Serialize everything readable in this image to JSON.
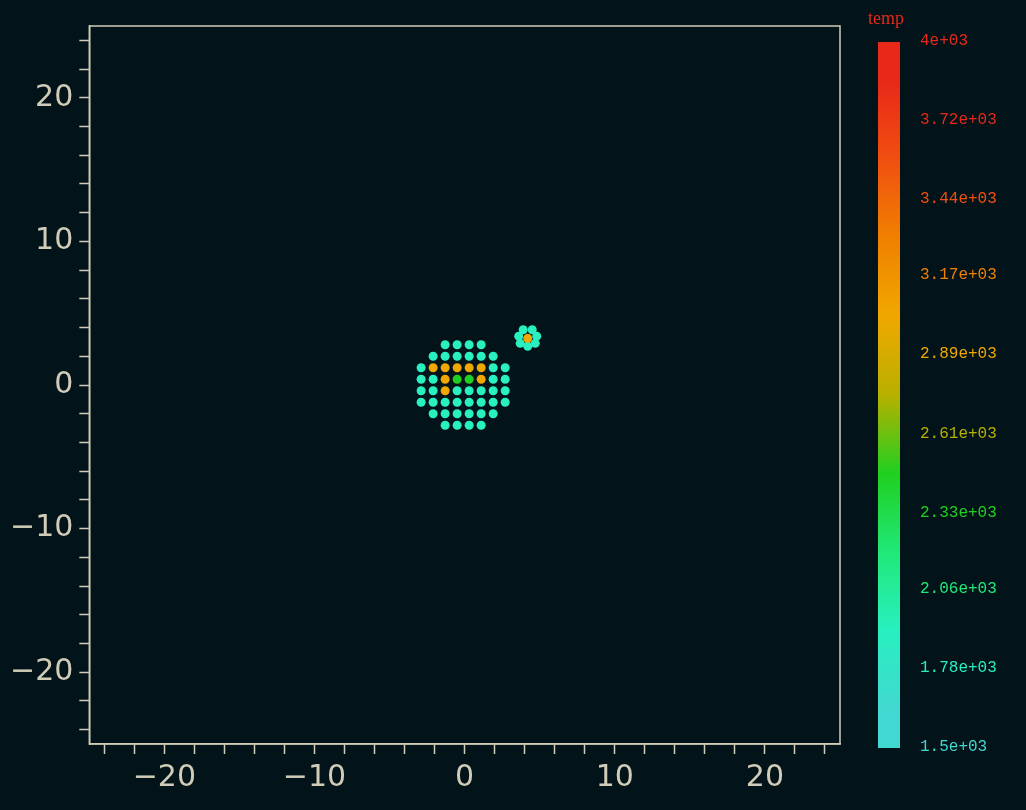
{
  "chart_data": {
    "type": "scatter",
    "clabel": "temp",
    "marker": "circle",
    "grid": false,
    "legend": false,
    "xlim": [
      -25,
      25
    ],
    "ylim": [
      -25,
      25
    ],
    "xticks": [
      {
        "value": -24,
        "label": null
      },
      {
        "value": -22,
        "label": null
      },
      -20,
      {
        "value": -18,
        "label": null
      },
      {
        "value": -16,
        "label": null
      },
      {
        "value": -14,
        "label": null
      },
      {
        "value": -12,
        "label": null
      },
      -10,
      {
        "value": -8,
        "label": null
      },
      {
        "value": -6,
        "label": null
      },
      {
        "value": -4,
        "label": null
      },
      {
        "value": -2,
        "label": null
      },
      0,
      {
        "value": 2,
        "label": null
      },
      {
        "value": 4,
        "label": null
      },
      {
        "value": 6,
        "label": null
      },
      {
        "value": 8,
        "label": null
      },
      10,
      {
        "value": 12,
        "label": null
      },
      {
        "value": 14,
        "label": null
      },
      {
        "value": 16,
        "label": null
      },
      {
        "value": 18,
        "label": null
      },
      20,
      {
        "value": 22,
        "label": null
      },
      {
        "value": 24,
        "label": null
      }
    ],
    "yticks": [
      {
        "value": -24,
        "label": null
      },
      {
        "value": -22,
        "label": null
      },
      -20,
      {
        "value": -18,
        "label": null
      },
      {
        "value": -16,
        "label": null
      },
      {
        "value": -14,
        "label": null
      },
      {
        "value": -12,
        "label": null
      },
      -10,
      {
        "value": -8,
        "label": null
      },
      {
        "value": -6,
        "label": null
      },
      {
        "value": -4,
        "label": null
      },
      {
        "value": -2,
        "label": null
      },
      0,
      {
        "value": 2,
        "label": null
      },
      {
        "value": 4,
        "label": null
      },
      {
        "value": 6,
        "label": null
      },
      {
        "value": 8,
        "label": null
      },
      10,
      {
        "value": 12,
        "label": null
      },
      {
        "value": 14,
        "label": null
      },
      {
        "value": 16,
        "label": null
      },
      {
        "value": 18,
        "label": null
      },
      20,
      {
        "value": 22,
        "label": null
      },
      {
        "value": 24,
        "label": null
      }
    ],
    "clim": [
      1500,
      4000
    ],
    "cticks": [
      {
        "value": 1500,
        "label": "1.5e+03"
      },
      {
        "value": 1780,
        "label": "1.78e+03"
      },
      {
        "value": 2060,
        "label": "2.06e+03"
      },
      {
        "value": 2330,
        "label": "2.33e+03"
      },
      {
        "value": 2610,
        "label": "2.61e+03"
      },
      {
        "value": 2890,
        "label": "2.89e+03"
      },
      {
        "value": 3170,
        "label": "3.17e+03"
      },
      {
        "value": 3440,
        "label": "3.44e+03"
      },
      {
        "value": 3720,
        "label": "3.72e+03"
      },
      {
        "value": 4000,
        "label": "4e+03"
      }
    ],
    "x": [
      -2.9,
      -2.9,
      -2.9,
      -2.9,
      -2.1,
      -2.1,
      -2.1,
      -2.1,
      -2.1,
      -2.1,
      -1.3,
      -1.3,
      -1.3,
      -1.3,
      -1.3,
      -1.3,
      -1.3,
      -1.3,
      -0.5,
      -0.5,
      -0.5,
      -0.5,
      -0.5,
      -0.5,
      -0.5,
      -0.5,
      0.3,
      0.3,
      0.3,
      0.3,
      0.3,
      0.3,
      0.3,
      0.3,
      1.1,
      1.1,
      1.1,
      1.1,
      1.1,
      1.1,
      1.1,
      1.1,
      1.9,
      1.9,
      1.9,
      1.9,
      1.9,
      1.9,
      2.7,
      2.7,
      2.7,
      2.7,
      3.7,
      4.2,
      4.7,
      3.6,
      4.2,
      4.8,
      3.9,
      4.5
    ],
    "values": [
      -1.2,
      -0.4,
      0.4,
      1.2,
      -2.0,
      -1.2,
      -0.4,
      0.4,
      1.2,
      2.0,
      -2.8,
      -2.0,
      -1.2,
      -0.4,
      0.4,
      1.2,
      2.0,
      2.8,
      -2.8,
      -2.0,
      -1.2,
      -0.4,
      0.4,
      1.2,
      2.0,
      2.8,
      -2.8,
      -2.0,
      -1.2,
      -0.4,
      0.4,
      1.2,
      2.0,
      2.8,
      -2.8,
      -2.0,
      -1.2,
      -0.4,
      0.4,
      1.2,
      2.0,
      2.8,
      -2.0,
      -1.2,
      -0.4,
      0.4,
      1.2,
      2.0,
      -1.2,
      -0.4,
      0.4,
      1.2,
      2.9,
      2.7,
      2.9,
      3.4,
      3.25,
      3.4,
      3.85,
      3.85
    ],
    "cvalues": [
      1920,
      1920,
      1920,
      1920,
      1920,
      1920,
      1920,
      1920,
      3030,
      1920,
      1920,
      1920,
      1920,
      3030,
      3030,
      3030,
      1920,
      1920,
      1920,
      1920,
      1920,
      1920,
      2470,
      3030,
      1920,
      1920,
      1920,
      1920,
      1920,
      1920,
      2470,
      3030,
      1920,
      1920,
      1920,
      1920,
      1920,
      1920,
      3030,
      3030,
      1920,
      1920,
      1920,
      1920,
      1920,
      1920,
      1920,
      1920,
      1920,
      1920,
      1920,
      1920,
      1920,
      1920,
      1920,
      1920,
      3030,
      1920,
      1920,
      1920
    ]
  }
}
